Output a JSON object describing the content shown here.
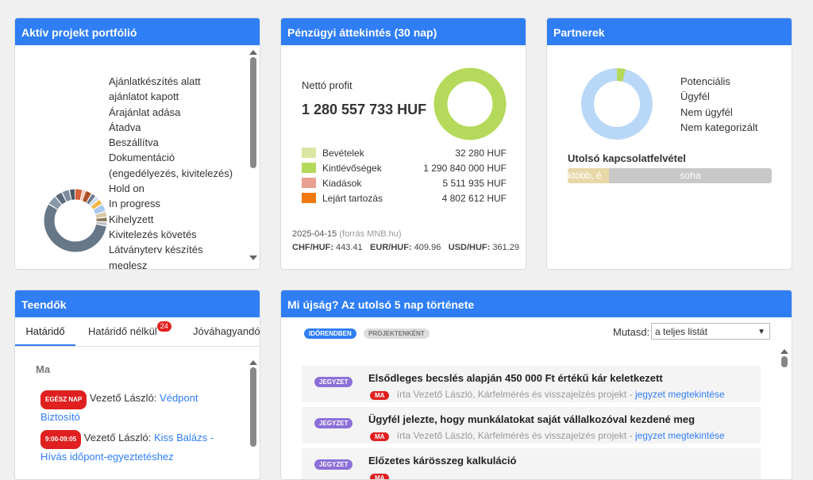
{
  "portfolio": {
    "title": "Aktív projekt portfólió",
    "legend": [
      "Ajánlatkészítés alatt",
      "ajánlatot kapott",
      "Árajánlat adása",
      "Átadva",
      "Beszállítva",
      "Dokumentáció",
      "(engedélyezés, kivitelezés)",
      "Hold on",
      "In progress",
      "Kihelyzett",
      "Kivitelezés követés",
      "Látványterv készítés",
      "meglesz"
    ]
  },
  "finance": {
    "title": "Pénzügyi áttekintés (30 nap)",
    "net_label": "Nettó profit",
    "net_value": "1 280 557 733 HUF",
    "rows": [
      {
        "label": "Bevételek",
        "value": "32 280 HUF",
        "color": "#dbe6a3"
      },
      {
        "label": "Kintlévőségek",
        "value": "1 290 840 000 HUF",
        "color": "#b5d95a"
      },
      {
        "label": "Kiadások",
        "value": "5 511 935 HUF",
        "color": "#e8a090"
      },
      {
        "label": "Lejárt tartozás",
        "value": "4 802 612 HUF",
        "color": "#f07a10"
      }
    ],
    "date": "2025-04-15",
    "source": "(forrás MNB.hu)",
    "rates": [
      {
        "label": "CHF/HUF:",
        "value": "443.41"
      },
      {
        "label": "EUR/HUF:",
        "value": "409.96"
      },
      {
        "label": "USD/HUF:",
        "value": "361.29"
      }
    ]
  },
  "partners": {
    "title": "Partnerek",
    "legend": [
      "Potenciális",
      "Ügyfél",
      "Nem ügyfél",
      "Nem kategorizált"
    ],
    "last_contact_label": "Utolsó kapcsolatfelvétel",
    "bar_left_text": "ktöbb, é",
    "bar_right_text": "soha"
  },
  "todos": {
    "title": "Teendők",
    "tabs": [
      "Határidő",
      "Határidő nélkül",
      "Jóváhagyandók"
    ],
    "tab_badge": "24",
    "day_label": "Ma",
    "items": [
      {
        "time": "EGÉSZ NAP",
        "person": "Vezető László:",
        "link": "Védpont Biztosító"
      },
      {
        "time": "9:00-09:05",
        "person": "Vezető László:",
        "link": "Kiss Balázs - Hívás időpont-egyeztetéshez"
      }
    ]
  },
  "news": {
    "title": "Mi újság? Az utolsó 5 nap története",
    "mode_active": "IDŐRENDBEN",
    "mode_inactive": "PROJEKTENKÉNT",
    "show_label": "Mutasd:",
    "show_value": "a teljes listát",
    "items": [
      {
        "tag": "JEGYZET",
        "title": "Elsődleges becslés alapján 450 000 Ft értékű kár keletkezett",
        "badge": "MA",
        "meta": "írta Vezető László, Kárfelmérés és visszajelzés projekt -",
        "link": "jegyzet megtekintése"
      },
      {
        "tag": "JEGYZET",
        "title": "Ügyfél jelezte, hogy munkálatokat saját vállalkozóval kezdené meg",
        "badge": "MA",
        "meta": "írta Vezető László, Kárfelmérés és visszajelzés projekt -",
        "link": "jegyzet megtekintése"
      },
      {
        "tag": "JEGYZET",
        "title": "Előzetes kárösszeg kalkuláció",
        "badge": "MA",
        "meta": "",
        "link": ""
      }
    ]
  }
}
